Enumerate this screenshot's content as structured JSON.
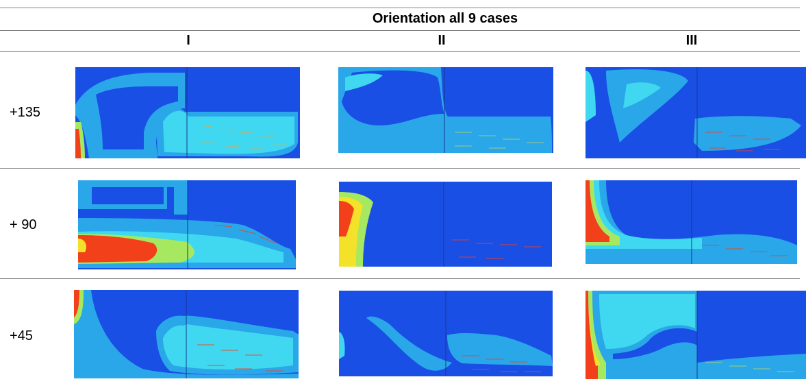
{
  "table": {
    "title": "Orientation all 9 cases",
    "columns": [
      "I",
      "II",
      "III"
    ],
    "rows": [
      {
        "label": "+135"
      },
      {
        "label": "+ 90"
      },
      {
        "label": "+45"
      }
    ]
  },
  "colors": {
    "low": "#1a4fe6",
    "mid_low": "#2aa7e8",
    "mid": "#40d8f0",
    "mid_high": "#a6e860",
    "high": "#f4e22a",
    "max": "#f2401a",
    "rule": "#7f7f7f"
  }
}
